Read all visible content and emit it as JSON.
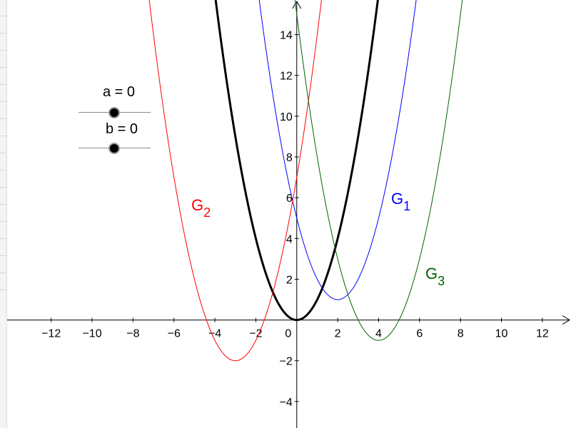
{
  "graph": {
    "x_range": [
      -14.5,
      13.4
    ],
    "y_range": [
      -5.3,
      15.7
    ],
    "x_ticks": [
      -12,
      -10,
      -8,
      -6,
      -4,
      -2,
      0,
      2,
      4,
      6,
      8,
      10,
      12
    ],
    "y_ticks": [
      -4,
      -2,
      2,
      4,
      6,
      8,
      10,
      12,
      14
    ],
    "origin_label": "0"
  },
  "sliders": [
    {
      "name": "a",
      "label": "a = 0",
      "value": 0
    },
    {
      "name": "b",
      "label": "b = 0",
      "value": 0
    }
  ],
  "curves": [
    {
      "id": "base",
      "label": "",
      "sub": "",
      "color": "#000000",
      "h": 0,
      "k": 0,
      "a": 1,
      "width": 3
    },
    {
      "id": "G1",
      "label": "G",
      "sub": "1",
      "color": "#0000ff",
      "h": 2,
      "k": 1,
      "a": 1,
      "width": 1
    },
    {
      "id": "G2",
      "label": "G",
      "sub": "2",
      "color": "#ff0000",
      "h": -3,
      "k": -2,
      "a": 1,
      "width": 1
    },
    {
      "id": "G3",
      "label": "G",
      "sub": "3",
      "color": "#006400",
      "h": 4,
      "k": -1,
      "a": 1,
      "width": 1
    }
  ]
}
